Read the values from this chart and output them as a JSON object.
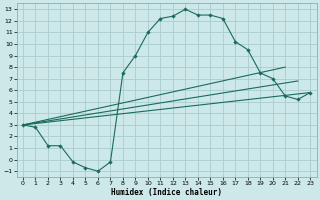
{
  "xlabel": "Humidex (Indice chaleur)",
  "bg_color": "#cce8e8",
  "grid_color": "#aacccc",
  "line_color": "#1a6b5a",
  "xlim": [
    -0.5,
    23.5
  ],
  "ylim": [
    -1.5,
    13.5
  ],
  "xticks": [
    0,
    1,
    2,
    3,
    4,
    5,
    6,
    7,
    8,
    9,
    10,
    11,
    12,
    13,
    14,
    15,
    16,
    17,
    18,
    19,
    20,
    21,
    22,
    23
  ],
  "yticks": [
    -1,
    0,
    1,
    2,
    3,
    4,
    5,
    6,
    7,
    8,
    9,
    10,
    11,
    12,
    13
  ],
  "curve_main_x": [
    0,
    1,
    2,
    3,
    4,
    5,
    6,
    7,
    8,
    9,
    10,
    11,
    12,
    13,
    14,
    15,
    16,
    17,
    18,
    19,
    20,
    21,
    22,
    23
  ],
  "curve_main_y": [
    3.0,
    2.8,
    1.2,
    1.2,
    -0.2,
    -0.7,
    -1.0,
    -0.2,
    7.5,
    9.0,
    11.0,
    12.2,
    12.4,
    13.0,
    12.5,
    12.5,
    12.2,
    10.2,
    9.5,
    7.5,
    7.0,
    5.5,
    5.2,
    5.8
  ],
  "line1_x": [
    0,
    21
  ],
  "line1_y": [
    3.0,
    8.0
  ],
  "line2_x": [
    0,
    22
  ],
  "line2_y": [
    3.0,
    6.8
  ],
  "line3_x": [
    0,
    23
  ],
  "line3_y": [
    3.0,
    5.8
  ]
}
